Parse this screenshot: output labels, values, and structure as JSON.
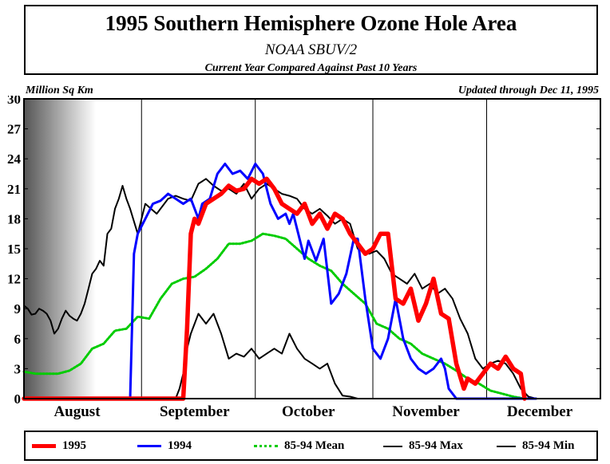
{
  "title": "1995 Southern Hemisphere Ozone Hole Area",
  "subtitle": "NOAA SBUV/2",
  "caption": "Current Year Compared Against Past 10 Years",
  "ylabel": "Million Sq Km",
  "updated": "Updated through Dec 11, 1995",
  "colors": {
    "1995": "#ff0000",
    "1994": "#0000ff",
    "mean": "#00cc00",
    "max": "#000000",
    "min": "#000000"
  },
  "legend": [
    {
      "key": "1995",
      "label": "1995"
    },
    {
      "key": "1994",
      "label": "1994"
    },
    {
      "key": "mean",
      "label": "85-94 Mean"
    },
    {
      "key": "max",
      "label": "85-94 Max"
    },
    {
      "key": "min",
      "label": "85-94 Min"
    }
  ],
  "chart_data": {
    "type": "line",
    "title": "1995 Southern Hemisphere Ozone Hole Area",
    "subtitle": "NOAA SBUV/2",
    "ylabel": "Million Sq Km",
    "ylim": [
      0,
      30
    ],
    "yticks": [
      0,
      3,
      6,
      9,
      12,
      15,
      18,
      21,
      24,
      27,
      30
    ],
    "xlim": [
      "1995-08-01",
      "1995-12-31"
    ],
    "month_ticks": [
      "1995-09-01",
      "1995-10-01",
      "1995-11-01",
      "1995-12-01"
    ],
    "month_labels": [
      {
        "date": "1995-08-15",
        "label": "August"
      },
      {
        "date": "1995-09-15",
        "label": "September"
      },
      {
        "date": "1995-10-15",
        "label": "October"
      },
      {
        "date": "1995-11-15",
        "label": "November"
      },
      {
        "date": "1995-12-15",
        "label": "December"
      }
    ],
    "shaded_polar_night_until": "1995-08-20",
    "series": [
      {
        "name": "85-94 Max",
        "key": "max",
        "x": [
          "1995-08-01",
          "1995-08-02",
          "1995-08-03",
          "1995-08-04",
          "1995-08-05",
          "1995-08-06",
          "1995-08-07",
          "1995-08-08",
          "1995-08-09",
          "1995-08-10",
          "1995-08-11",
          "1995-08-12",
          "1995-08-13",
          "1995-08-14",
          "1995-08-15",
          "1995-08-16",
          "1995-08-17",
          "1995-08-18",
          "1995-08-19",
          "1995-08-20",
          "1995-08-21",
          "1995-08-22",
          "1995-08-23",
          "1995-08-24",
          "1995-08-25",
          "1995-08-26",
          "1995-08-27",
          "1995-08-28",
          "1995-08-29",
          "1995-08-31",
          "1995-09-02",
          "1995-09-05",
          "1995-09-08",
          "1995-09-10",
          "1995-09-12",
          "1995-09-14",
          "1995-09-16",
          "1995-09-18",
          "1995-09-20",
          "1995-09-22",
          "1995-09-24",
          "1995-09-26",
          "1995-09-28",
          "1995-09-30",
          "1995-10-02",
          "1995-10-04",
          "1995-10-06",
          "1995-10-08",
          "1995-10-10",
          "1995-10-12",
          "1995-10-14",
          "1995-10-16",
          "1995-10-18",
          "1995-10-20",
          "1995-10-22",
          "1995-10-24",
          "1995-10-26",
          "1995-10-28",
          "1995-10-31",
          "1995-11-02",
          "1995-11-04",
          "1995-11-06",
          "1995-11-08",
          "1995-11-10",
          "1995-11-12",
          "1995-11-14",
          "1995-11-16",
          "1995-11-18",
          "1995-11-20",
          "1995-11-22",
          "1995-11-24",
          "1995-11-26",
          "1995-11-28",
          "1995-11-30",
          "1995-12-02",
          "1995-12-04",
          "1995-12-06",
          "1995-12-08",
          "1995-12-10",
          "1995-12-12",
          "1995-12-14"
        ],
        "values": [
          9.3,
          9.0,
          8.4,
          8.5,
          9.0,
          8.8,
          8.5,
          7.8,
          6.5,
          7.0,
          8.0,
          8.8,
          8.3,
          8.0,
          7.8,
          8.5,
          9.5,
          11.0,
          12.5,
          13.0,
          13.8,
          13.3,
          16.5,
          17.0,
          19.0,
          20.0,
          21.3,
          20.0,
          19.0,
          16.5,
          19.5,
          18.5,
          20.0,
          20.3,
          20.0,
          19.8,
          21.5,
          22.0,
          21.3,
          20.8,
          21.0,
          20.5,
          21.5,
          20.0,
          21.0,
          21.5,
          21.0,
          20.5,
          20.3,
          20.0,
          19.0,
          18.5,
          19.0,
          18.3,
          17.5,
          18.0,
          17.5,
          15.0,
          14.5,
          14.8,
          14.0,
          12.5,
          12.0,
          11.5,
          12.5,
          11.0,
          11.5,
          10.5,
          11.0,
          10.0,
          8.0,
          6.5,
          4.0,
          3.0,
          3.5,
          3.8,
          3.5,
          2.5,
          1.0,
          0.2,
          0.0
        ]
      },
      {
        "name": "85-94 Min",
        "key": "min",
        "x": [
          "1995-08-01",
          "1995-09-10",
          "1995-09-11",
          "1995-09-12",
          "1995-09-13",
          "1995-09-14",
          "1995-09-16",
          "1995-09-18",
          "1995-09-20",
          "1995-09-22",
          "1995-09-24",
          "1995-09-26",
          "1995-09-28",
          "1995-09-30",
          "1995-10-02",
          "1995-10-04",
          "1995-10-06",
          "1995-10-08",
          "1995-10-10",
          "1995-10-12",
          "1995-10-14",
          "1995-10-16",
          "1995-10-18",
          "1995-10-20",
          "1995-10-22",
          "1995-10-24",
          "1995-10-26",
          "1995-10-28",
          "1995-10-30",
          "1995-11-01"
        ],
        "values": [
          0.0,
          0.0,
          1.0,
          2.5,
          5.0,
          6.5,
          8.5,
          7.5,
          8.5,
          6.5,
          4.0,
          4.5,
          4.2,
          5.0,
          4.0,
          4.5,
          5.0,
          4.5,
          6.5,
          5.0,
          4.0,
          3.5,
          3.0,
          3.5,
          1.5,
          0.3,
          0.2,
          0.0,
          0.0,
          0.0
        ]
      },
      {
        "name": "85-94 Mean",
        "key": "mean",
        "x": [
          "1995-08-01",
          "1995-08-04",
          "1995-08-07",
          "1995-08-10",
          "1995-08-13",
          "1995-08-16",
          "1995-08-19",
          "1995-08-22",
          "1995-08-25",
          "1995-08-28",
          "1995-08-31",
          "1995-09-03",
          "1995-09-06",
          "1995-09-09",
          "1995-09-12",
          "1995-09-15",
          "1995-09-18",
          "1995-09-21",
          "1995-09-24",
          "1995-09-27",
          "1995-09-30",
          "1995-10-03",
          "1995-10-06",
          "1995-10-09",
          "1995-10-12",
          "1995-10-15",
          "1995-10-18",
          "1995-10-21",
          "1995-10-24",
          "1995-10-27",
          "1995-10-30",
          "1995-11-02",
          "1995-11-05",
          "1995-11-08",
          "1995-11-11",
          "1995-11-14",
          "1995-11-17",
          "1995-11-20",
          "1995-11-23",
          "1995-11-26",
          "1995-11-29",
          "1995-12-02",
          "1995-12-05",
          "1995-12-08",
          "1995-12-11",
          "1995-12-14"
        ],
        "values": [
          2.7,
          2.5,
          2.5,
          2.5,
          2.8,
          3.5,
          5.0,
          5.5,
          6.8,
          7.0,
          8.2,
          8.0,
          10.0,
          11.5,
          12.0,
          12.2,
          13.0,
          14.0,
          15.5,
          15.5,
          15.8,
          16.5,
          16.3,
          16.0,
          15.0,
          14.0,
          13.3,
          12.8,
          11.5,
          10.5,
          9.5,
          7.5,
          7.0,
          6.0,
          5.5,
          4.5,
          4.0,
          3.5,
          2.8,
          2.0,
          1.5,
          0.8,
          0.5,
          0.2,
          0.0,
          0.0
        ]
      },
      {
        "name": "1994",
        "key": "1994",
        "x": [
          "1995-08-01",
          "1995-08-29",
          "1995-08-30",
          "1995-08-31",
          "1995-09-02",
          "1995-09-04",
          "1995-09-06",
          "1995-09-08",
          "1995-09-10",
          "1995-09-12",
          "1995-09-14",
          "1995-09-16",
          "1995-09-17",
          "1995-09-19",
          "1995-09-21",
          "1995-09-23",
          "1995-09-25",
          "1995-09-27",
          "1995-09-29",
          "1995-10-01",
          "1995-10-03",
          "1995-10-05",
          "1995-10-07",
          "1995-10-09",
          "1995-10-10",
          "1995-10-11",
          "1995-10-12",
          "1995-10-14",
          "1995-10-15",
          "1995-10-17",
          "1995-10-19",
          "1995-10-21",
          "1995-10-23",
          "1995-10-25",
          "1995-10-27",
          "1995-10-28",
          "1995-10-30",
          "1995-11-01",
          "1995-11-03",
          "1995-11-05",
          "1995-11-07",
          "1995-11-09",
          "1995-11-11",
          "1995-11-13",
          "1995-11-15",
          "1995-11-17",
          "1995-11-19",
          "1995-11-20",
          "1995-11-21",
          "1995-11-23",
          "1995-12-14"
        ],
        "values": [
          0.0,
          0.0,
          14.5,
          16.5,
          18.0,
          19.5,
          19.8,
          20.5,
          20.0,
          19.5,
          20.0,
          18.0,
          19.5,
          20.0,
          22.5,
          23.5,
          22.5,
          22.8,
          22.0,
          23.5,
          22.5,
          19.5,
          18.0,
          18.5,
          17.5,
          18.5,
          17.0,
          14.0,
          15.8,
          13.8,
          16.0,
          9.5,
          10.5,
          12.5,
          16.0,
          16.0,
          10.0,
          5.0,
          4.0,
          6.0,
          10.0,
          6.0,
          4.0,
          3.0,
          2.5,
          3.0,
          4.0,
          3.0,
          1.0,
          0.0,
          0.0
        ]
      },
      {
        "name": "1995",
        "key": "1995",
        "x": [
          "1995-08-01",
          "1995-09-12",
          "1995-09-13",
          "1995-09-14",
          "1995-09-15",
          "1995-09-16",
          "1995-09-18",
          "1995-09-20",
          "1995-09-22",
          "1995-09-24",
          "1995-09-26",
          "1995-09-28",
          "1995-09-30",
          "1995-10-02",
          "1995-10-04",
          "1995-10-06",
          "1995-10-08",
          "1995-10-10",
          "1995-10-12",
          "1995-10-14",
          "1995-10-16",
          "1995-10-18",
          "1995-10-20",
          "1995-10-22",
          "1995-10-24",
          "1995-10-26",
          "1995-10-28",
          "1995-10-30",
          "1995-11-01",
          "1995-11-03",
          "1995-11-05",
          "1995-11-07",
          "1995-11-09",
          "1995-11-11",
          "1995-11-13",
          "1995-11-15",
          "1995-11-17",
          "1995-11-19",
          "1995-11-21",
          "1995-11-23",
          "1995-11-25",
          "1995-11-26",
          "1995-11-28",
          "1995-11-30",
          "1995-12-02",
          "1995-12-04",
          "1995-12-06",
          "1995-12-08",
          "1995-12-10",
          "1995-12-11"
        ],
        "values": [
          0.0,
          0.0,
          7.0,
          16.5,
          18.0,
          17.5,
          19.5,
          20.0,
          20.5,
          21.3,
          20.8,
          21.0,
          22.0,
          21.5,
          22.0,
          21.0,
          19.5,
          19.0,
          18.5,
          19.5,
          17.5,
          18.5,
          17.0,
          18.5,
          18.0,
          16.5,
          15.5,
          14.5,
          15.0,
          16.5,
          16.5,
          10.0,
          9.5,
          11.0,
          7.8,
          9.5,
          12.0,
          8.5,
          8.0,
          3.5,
          1.0,
          2.0,
          1.5,
          2.5,
          3.5,
          3.0,
          4.2,
          3.0,
          2.5,
          0.0
        ]
      }
    ]
  }
}
